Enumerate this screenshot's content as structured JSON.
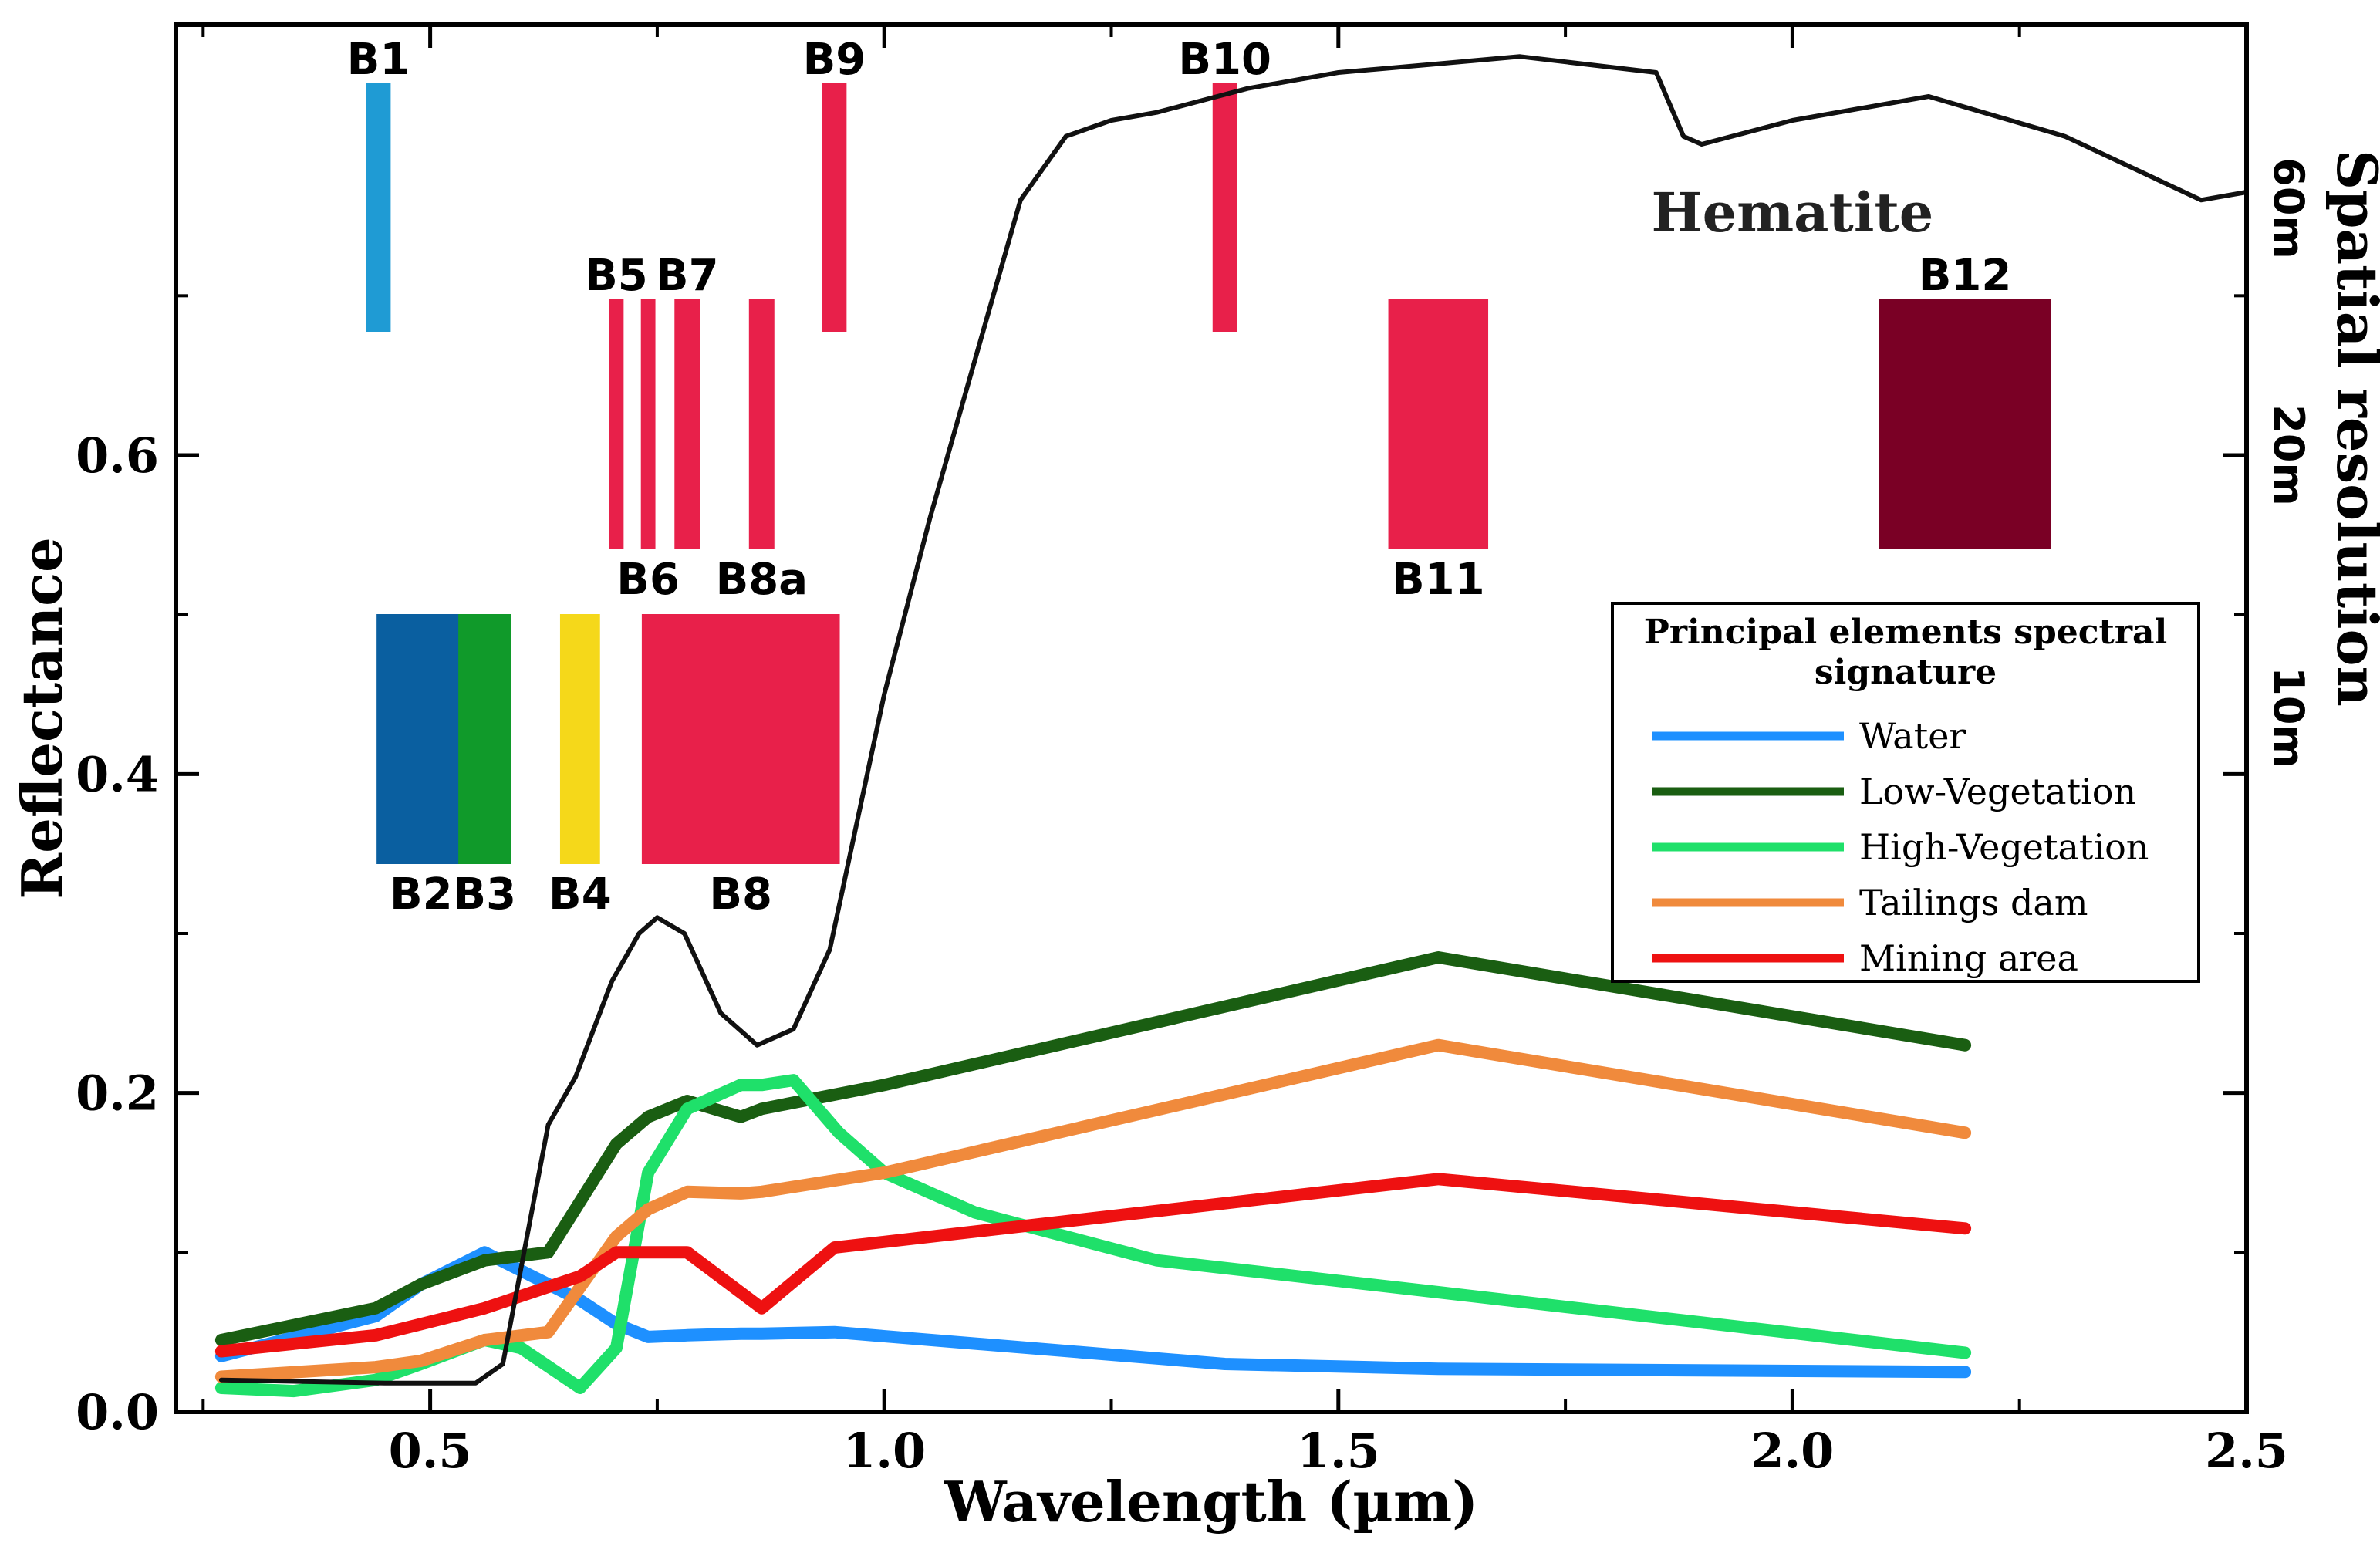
{
  "chart_data": {
    "type": "line",
    "xlabel": "Wavelength (µm)",
    "ylabel": "Reflectance",
    "right_axis_label": "Spatial resolution",
    "xlim": [
      0.22,
      2.5
    ],
    "ylim": [
      0.0,
      0.87
    ],
    "x_ticks": [
      {
        "value": 0.5,
        "label": "0.5"
      },
      {
        "value": 1.0,
        "label": "1.0"
      },
      {
        "value": 1.5,
        "label": "1.5"
      },
      {
        "value": 2.0,
        "label": "2.0"
      },
      {
        "value": 2.5,
        "label": "2.5"
      }
    ],
    "y_ticks": [
      {
        "value": 0.0,
        "label": "0.0"
      },
      {
        "value": 0.2,
        "label": "0.2"
      },
      {
        "value": 0.4,
        "label": "0.4"
      },
      {
        "value": 0.6,
        "label": "0.6"
      }
    ],
    "resolution_labels": [
      "60m",
      "20m",
      "10m"
    ],
    "series": [
      {
        "name": "Water",
        "color": "#1e90ff",
        "x": [
          0.27,
          0.44,
          0.49,
          0.56,
          0.665,
          0.705,
          0.74,
          0.783,
          0.842,
          0.865,
          0.945,
          1.375,
          1.61,
          2.19
        ],
        "y": [
          0.035,
          0.06,
          0.08,
          0.1,
          0.07,
          0.055,
          0.047,
          0.048,
          0.049,
          0.049,
          0.05,
          0.03,
          0.027,
          0.025
        ]
      },
      {
        "name": "Low-Vegetation",
        "color": "#1a5e12",
        "x": [
          0.27,
          0.44,
          0.49,
          0.56,
          0.63,
          0.705,
          0.74,
          0.783,
          0.842,
          0.865,
          1.0,
          1.61,
          2.19
        ],
        "y": [
          0.045,
          0.065,
          0.08,
          0.095,
          0.1,
          0.168,
          0.185,
          0.195,
          0.185,
          0.19,
          0.205,
          0.285,
          0.23
        ]
      },
      {
        "name": "High-Vegetation",
        "color": "#1fe06a",
        "x": [
          0.27,
          0.35,
          0.44,
          0.49,
          0.56,
          0.6,
          0.665,
          0.705,
          0.74,
          0.783,
          0.842,
          0.865,
          0.9,
          0.95,
          1.0,
          1.1,
          1.3,
          1.61,
          2.19
        ],
        "y": [
          0.015,
          0.013,
          0.02,
          0.03,
          0.045,
          0.04,
          0.015,
          0.04,
          0.15,
          0.19,
          0.205,
          0.205,
          0.208,
          0.175,
          0.15,
          0.125,
          0.095,
          0.075,
          0.037
        ]
      },
      {
        "name": "Tailings dam",
        "color": "#f08a3c",
        "x": [
          0.27,
          0.44,
          0.49,
          0.56,
          0.63,
          0.705,
          0.74,
          0.783,
          0.842,
          0.865,
          1.0,
          1.61,
          2.19
        ],
        "y": [
          0.022,
          0.028,
          0.032,
          0.045,
          0.05,
          0.11,
          0.127,
          0.138,
          0.137,
          0.138,
          0.15,
          0.23,
          0.175
        ]
      },
      {
        "name": "Mining area",
        "color": "#ee1111",
        "x": [
          0.27,
          0.44,
          0.49,
          0.56,
          0.665,
          0.705,
          0.783,
          0.865,
          0.945,
          1.61,
          2.19
        ],
        "y": [
          0.038,
          0.048,
          0.055,
          0.065,
          0.085,
          0.1,
          0.1,
          0.065,
          0.103,
          0.146,
          0.115
        ]
      },
      {
        "name": "Hematite",
        "color": "#111111",
        "x": [
          0.27,
          0.45,
          0.5,
          0.55,
          0.58,
          0.61,
          0.63,
          0.66,
          0.7,
          0.73,
          0.75,
          0.78,
          0.82,
          0.86,
          0.9,
          0.94,
          1.0,
          1.05,
          1.1,
          1.15,
          1.2,
          1.25,
          1.3,
          1.4,
          1.5,
          1.6,
          1.7,
          1.85,
          1.88,
          1.9,
          2.0,
          2.15,
          2.3,
          2.45,
          2.5
        ],
        "y": [
          0.02,
          0.018,
          0.018,
          0.018,
          0.03,
          0.12,
          0.18,
          0.21,
          0.27,
          0.3,
          0.31,
          0.3,
          0.25,
          0.23,
          0.24,
          0.29,
          0.45,
          0.56,
          0.66,
          0.76,
          0.8,
          0.81,
          0.815,
          0.83,
          0.84,
          0.845,
          0.85,
          0.84,
          0.8,
          0.795,
          0.81,
          0.825,
          0.8,
          0.76,
          0.765
        ]
      }
    ],
    "bands": [
      {
        "name": "B1",
        "center": 0.443,
        "width": 0.027,
        "resolution": "60m",
        "color": "#1f9bd4",
        "label_pos": "above"
      },
      {
        "name": "B9",
        "center": 0.945,
        "width": 0.027,
        "resolution": "60m",
        "color": "#e8204a",
        "label_pos": "above"
      },
      {
        "name": "B10",
        "center": 1.375,
        "width": 0.027,
        "resolution": "60m",
        "color": "#e8204a",
        "label_pos": "above"
      },
      {
        "name": "B5",
        "center": 0.705,
        "width": 0.016,
        "resolution": "20m",
        "color": "#e8204a",
        "label_pos": "above"
      },
      {
        "name": "B6",
        "center": 0.74,
        "width": 0.016,
        "resolution": "20m",
        "color": "#e8204a",
        "label_pos": "below"
      },
      {
        "name": "B7",
        "center": 0.783,
        "width": 0.028,
        "resolution": "20m",
        "color": "#e8204a",
        "label_pos": "above"
      },
      {
        "name": "B8a",
        "center": 0.865,
        "width": 0.028,
        "resolution": "20m",
        "color": "#e8204a",
        "label_pos": "below"
      },
      {
        "name": "B11",
        "center": 1.61,
        "width": 0.11,
        "resolution": "20m",
        "color": "#e8204a",
        "label_pos": "below"
      },
      {
        "name": "B12",
        "center": 2.19,
        "width": 0.19,
        "resolution": "20m",
        "color": "#7a0025",
        "label_pos": "above"
      },
      {
        "name": "B2",
        "center": 0.49,
        "width": 0.098,
        "resolution": "10m",
        "color": "#0a5fa0",
        "label_pos": "below"
      },
      {
        "name": "B3",
        "center": 0.56,
        "width": 0.058,
        "resolution": "10m",
        "color": "#109a2a",
        "label_pos": "below"
      },
      {
        "name": "B4",
        "center": 0.665,
        "width": 0.044,
        "resolution": "10m",
        "color": "#f5d81a",
        "label_pos": "below"
      },
      {
        "name": "B8",
        "center": 0.842,
        "width": 0.218,
        "resolution": "10m",
        "color": "#e8204a",
        "label_pos": "below"
      }
    ],
    "annotations": [
      {
        "text": "Hematite",
        "x": 2.0,
        "y": 0.75
      }
    ],
    "legend": {
      "title_line1": "Principal elements spectral",
      "title_line2": "signature",
      "placement": "center-right",
      "entries": [
        "Water",
        "Low-Vegetation",
        "High-Vegetation",
        "Tailings dam",
        "Mining area"
      ]
    }
  }
}
